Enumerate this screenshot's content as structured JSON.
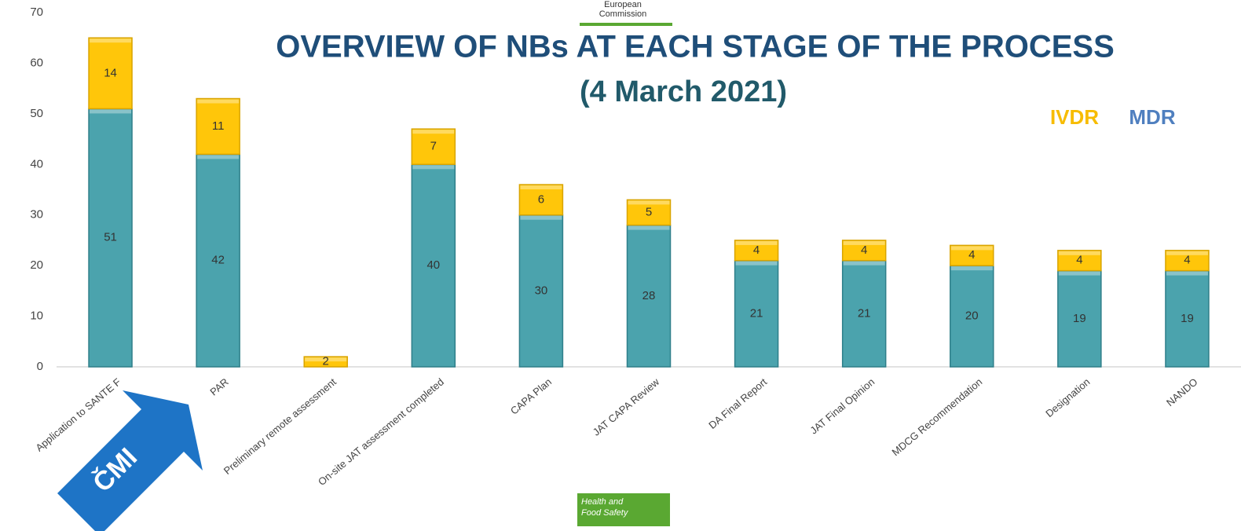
{
  "chart_data": {
    "type": "stacked_bar",
    "title": "OVERVIEW OF NBs AT EACH STAGE OF THE PROCESS",
    "subtitle": "(4 March 2021)",
    "header": [
      "European",
      "Commission"
    ],
    "footer": [
      "Health and",
      "Food Safety"
    ],
    "annotation": "ČMI",
    "categories": [
      "Application to SANTE F",
      "PAR",
      "Preliminary remote assessment",
      "On-site JAT assessment completed",
      "CAPA Plan",
      "JAT CAPA Review",
      "DA Final Report",
      "JAT Final Opinion",
      "MDCG Recommendation",
      "Designation",
      "NANDO"
    ],
    "series": [
      {
        "name": "MDR",
        "color": "#4ba3ad",
        "legend_color": "#4f7fbf",
        "values": [
          51,
          42,
          null,
          40,
          30,
          28,
          21,
          21,
          20,
          19,
          19
        ]
      },
      {
        "name": "IVDR",
        "color": "#ffc60a",
        "legend_color": "#f7bc00",
        "values": [
          14,
          11,
          2,
          7,
          6,
          5,
          4,
          4,
          4,
          4,
          4
        ]
      }
    ],
    "ylim": [
      0,
      70
    ],
    "yticks": [
      0,
      10,
      20,
      30,
      40,
      50,
      60,
      70
    ],
    "grid": false
  }
}
